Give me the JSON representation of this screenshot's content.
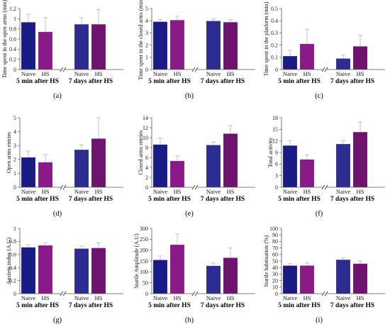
{
  "colors": {
    "naive_5min": "#1b1b86",
    "hs_5min": "#8a1a8a",
    "naive_7d": "#2c2c92",
    "hs_7d": "#6e146e",
    "error": "#c9b8d4",
    "axis": "#555555"
  },
  "chart_data": [
    {
      "type": "bar",
      "panel_label": "(a)",
      "ylabel": "Time spent in the open arms (min)",
      "ylim": [
        0,
        1.2
      ],
      "yticks": [
        "0",
        "0.2",
        "0.4",
        "0.6",
        "0.8",
        "1",
        "1.2"
      ],
      "categories": [
        "Naive",
        "HS",
        "Naive",
        "HS"
      ],
      "groups": [
        "5 min after HS",
        "7 days after HS"
      ],
      "values": [
        0.93,
        0.74,
        0.89,
        0.89
      ],
      "errors": [
        0.16,
        0.28,
        0.13,
        0.29
      ]
    },
    {
      "type": "bar",
      "panel_label": "(b)",
      "ylabel": "Time spent in the closed arms (min)",
      "ylim": [
        0,
        5
      ],
      "yticks": [
        "0",
        "1",
        "2",
        "3",
        "4",
        "5"
      ],
      "categories": [
        "Naive",
        "HS",
        "Naive",
        "HS"
      ],
      "groups": [
        "5 min after HS",
        "7 days after HS"
      ],
      "values": [
        3.92,
        4.05,
        3.98,
        3.88
      ],
      "errors": [
        0.18,
        0.32,
        0.18,
        0.22
      ]
    },
    {
      "type": "bar",
      "panel_label": "(c)",
      "ylabel": "Time spent in the platform (min)",
      "ylim": [
        0,
        0.5
      ],
      "yticks": [
        "0",
        "0.1",
        "0.2",
        "0.3",
        "0.4",
        "0.5"
      ],
      "categories": [
        "Naive",
        "HS",
        "Naive",
        "HS"
      ],
      "groups": [
        "5 min after HS",
        "7 days after HS"
      ],
      "values": [
        0.11,
        0.21,
        0.09,
        0.19
      ],
      "errors": [
        0.045,
        0.12,
        0.03,
        0.09
      ]
    },
    {
      "type": "bar",
      "panel_label": "(d)",
      "ylabel": "Open arms entries",
      "ylim": [
        0,
        5
      ],
      "yticks": [
        "0",
        "1",
        "2",
        "3",
        "4",
        "5"
      ],
      "categories": [
        "Naive",
        "HS",
        "Naive",
        "HS"
      ],
      "groups": [
        "5 min after HS",
        "7 days after HS"
      ],
      "values": [
        2.15,
        1.8,
        2.7,
        3.5
      ],
      "errors": [
        0.45,
        0.55,
        0.35,
        1.5
      ]
    },
    {
      "type": "bar",
      "panel_label": "(e)",
      "ylabel": "Closed arms entries",
      "ylim": [
        0,
        14
      ],
      "yticks": [
        "0",
        "2",
        "4",
        "6",
        "8",
        "10",
        "12",
        "14"
      ],
      "categories": [
        "Naive",
        "HS",
        "Naive",
        "HS"
      ],
      "groups": [
        "5 min after HS",
        "7 days after HS"
      ],
      "values": [
        8.6,
        5.3,
        8.5,
        10.8
      ],
      "errors": [
        1.3,
        1.0,
        0.6,
        1.6
      ]
    },
    {
      "type": "bar",
      "panel_label": "(f)",
      "ylabel": "Total activity",
      "ylim": [
        0,
        18
      ],
      "yticks": [
        "0",
        "3",
        "6",
        "9",
        "12",
        "15",
        "18"
      ],
      "categories": [
        "Naive",
        "HS",
        "Naive",
        "HS"
      ],
      "groups": [
        "5 min after HS",
        "7 days after HS"
      ],
      "values": [
        10.8,
        7.2,
        11.2,
        14.3
      ],
      "errors": [
        1.3,
        1.2,
        0.8,
        2.6
      ]
    },
    {
      "type": "bar",
      "panel_label": "(g)",
      "ylabel": "Anxiety index (A.U)",
      "ylim": [
        0,
        1
      ],
      "yticks": [
        "0",
        "0.2",
        "0.4",
        "0.6",
        "0.8",
        "1"
      ],
      "categories": [
        "Naive",
        "HS",
        "Naive",
        "HS"
      ],
      "groups": [
        "5 min after HS",
        "7 days after HS"
      ],
      "values": [
        0.71,
        0.74,
        0.69,
        0.7
      ],
      "errors": [
        0.04,
        0.04,
        0.04,
        0.08
      ]
    },
    {
      "type": "bar",
      "panel_label": "(h)",
      "ylabel": "Startle Amplitude (A.U)",
      "ylim": [
        0,
        300
      ],
      "yticks": [
        "0",
        "50",
        "100",
        "150",
        "200",
        "250",
        "300"
      ],
      "categories": [
        "Naive",
        "HS",
        "Naive",
        "HS"
      ],
      "groups": [
        "5 min after HS",
        "7 days after HS"
      ],
      "values": [
        155,
        225,
        128,
        165
      ],
      "errors": [
        18,
        50,
        12,
        45
      ]
    },
    {
      "type": "bar",
      "panel_label": "(i)",
      "ylabel": "Startle habituation (%)",
      "ylim": [
        0,
        100
      ],
      "yticks": [
        "0",
        "10",
        "20",
        "30",
        "40",
        "50",
        "60",
        "70",
        "80",
        "90",
        "100"
      ],
      "categories": [
        "Naive",
        "HS",
        "Naive",
        "HS"
      ],
      "groups": [
        "5 min after HS",
        "7 days after HS"
      ],
      "values": [
        43,
        43,
        52,
        46
      ],
      "errors": [
        3,
        4,
        3,
        4
      ]
    }
  ]
}
